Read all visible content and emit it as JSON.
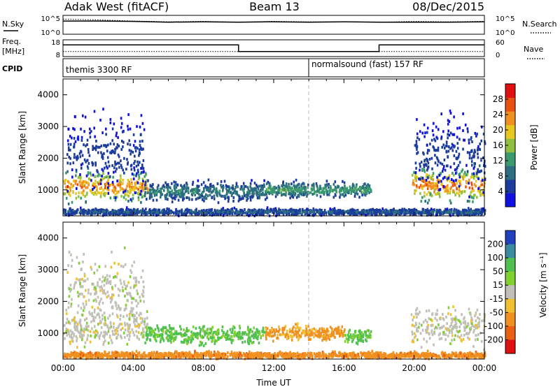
{
  "header": {
    "station": "Adak West (fitACF)",
    "beam": "Beam 13",
    "date": "08/Dec/2015"
  },
  "panel_labels": {
    "nsky": "N.Sky",
    "nsearch": "N.Search",
    "freq_line1": "Freq.",
    "freq_line2": "[MHz]",
    "nave": "Nave",
    "cpid": "CPID"
  },
  "cpid_names": [
    "themis 3300 RF",
    "normalsound (fast) 157 RF"
  ],
  "colors": {
    "power": [
      "#1010e0",
      "#1c3c9c",
      "#2c6e80",
      "#3a9a6e",
      "#90c040",
      "#e8c820",
      "#f09020",
      "#e85010",
      "#e01010"
    ],
    "velocity_pos": [
      "#2040c0",
      "#3a8aa0",
      "#50c050",
      "#80d030"
    ],
    "velocity_zero": "#c0c0b8",
    "velocity_neg": [
      "#f0c030",
      "#f09020",
      "#e86010",
      "#e01010"
    ]
  },
  "chart_data": [
    {
      "type": "line",
      "title": "N.Sky",
      "x_range_ut_hours": [
        0,
        24
      ],
      "y_tick_labels": [
        "10^5",
        "10^0"
      ],
      "right_label": "N.Search",
      "series": [
        {
          "name": "N.Sky",
          "x": [
            0,
            2,
            4,
            6,
            8,
            10,
            12,
            14,
            16,
            18,
            20,
            22,
            24
          ],
          "values": [
            3.5,
            3.5,
            3.4,
            3.2,
            3.3,
            3.2,
            3.3,
            3.2,
            3.3,
            3.2,
            3.2,
            3.2,
            3.3
          ]
        },
        {
          "name": "N.Search",
          "x": [
            0,
            2,
            4,
            6,
            8,
            10,
            12,
            14,
            16,
            18,
            20,
            22,
            24
          ],
          "values": [
            4.0,
            3.8,
            3.5,
            3.3,
            3.4,
            3.2,
            3.4,
            3.3,
            3.3,
            3.2,
            3.4,
            3.3,
            3.4
          ]
        }
      ]
    },
    {
      "type": "line",
      "title": "Freq.",
      "ylabel": "[MHz]",
      "x_range_ut_hours": [
        0,
        24
      ],
      "ylim": [
        8,
        18
      ],
      "y_tick_labels": [
        "18",
        "8"
      ],
      "right_ylim": [
        0,
        60
      ],
      "right_tick_labels": [
        "60",
        "0"
      ],
      "right_label": "Nave",
      "series": [
        {
          "name": "Freq.",
          "x": [
            0,
            10,
            10,
            18,
            18,
            24
          ],
          "values": [
            15,
            15,
            11,
            11,
            15,
            15
          ]
        },
        {
          "name": "Nave",
          "x": [
            0,
            24
          ],
          "values": [
            18,
            18
          ]
        }
      ]
    },
    {
      "type": "heatmap",
      "title": "CPID",
      "x_range_ut_hours": [
        0,
        24
      ],
      "segments": [
        {
          "name": "themis 3300 RF",
          "start": 0,
          "end": 14
        },
        {
          "name": "normalsound (fast) 157 RF",
          "start": 14,
          "end": 24
        }
      ]
    },
    {
      "type": "heatmap",
      "xlabel": "Time UT",
      "ylabel": "Slant Range [km]",
      "x_tick_labels": [
        "00:00",
        "04:00",
        "08:00",
        "12:00",
        "16:00",
        "20:00",
        "00:00"
      ],
      "x_ticks_hours": [
        0,
        4,
        8,
        12,
        16,
        20,
        24
      ],
      "ylim": [
        180,
        4500
      ],
      "y_ticks": [
        1000,
        2000,
        3000,
        4000
      ],
      "colorbar_label": "Power [dB]",
      "colorbar_ticks": [
        4,
        8,
        12,
        16,
        20,
        24,
        28
      ],
      "colorbar_range": [
        0,
        32
      ],
      "regions": [
        {
          "t0": 0.0,
          "t1": 4.8,
          "r_center": 1100,
          "r_width": 550,
          "peak_db": 30
        },
        {
          "t0": 0.2,
          "t1": 4.6,
          "r_center": 2100,
          "r_width": 1400,
          "peak_db": 6
        },
        {
          "t0": 4.6,
          "t1": 11.5,
          "r_center": 950,
          "r_width": 350,
          "peak_db": 13
        },
        {
          "t0": 11.5,
          "t1": 17.5,
          "r_center": 1000,
          "r_width": 280,
          "peak_db": 16
        },
        {
          "t0": 19.8,
          "t1": 24.0,
          "r_center": 1150,
          "r_width": 600,
          "peak_db": 30
        },
        {
          "t0": 20.0,
          "t1": 24.0,
          "r_center": 2100,
          "r_width": 1400,
          "peak_db": 6
        },
        {
          "t0": 0.0,
          "t1": 24.0,
          "r_center": 300,
          "r_width": 120,
          "peak_db": 10
        }
      ]
    },
    {
      "type": "heatmap",
      "xlabel": "Time UT",
      "ylabel": "Slant Range [km]",
      "x_tick_labels": [
        "00:00",
        "04:00",
        "08:00",
        "12:00",
        "16:00",
        "20:00",
        "00:00"
      ],
      "x_ticks_hours": [
        0,
        4,
        8,
        12,
        16,
        20,
        24
      ],
      "ylim": [
        180,
        4500
      ],
      "y_ticks": [
        1000,
        2000,
        3000,
        4000
      ],
      "colorbar_label": "Velocity [m s⁻¹]",
      "colorbar_ticks": [
        200,
        100,
        50,
        15,
        -15,
        -50,
        -100,
        -200
      ],
      "regions": [
        {
          "t0": 0.0,
          "t1": 4.8,
          "r_center": 1200,
          "r_width": 700,
          "velocity": 0
        },
        {
          "t0": 0.2,
          "t1": 4.6,
          "r_center": 2300,
          "r_width": 1300,
          "velocity": 0
        },
        {
          "t0": 4.6,
          "t1": 11.5,
          "r_center": 950,
          "r_width": 350,
          "velocity": 40
        },
        {
          "t0": 11.5,
          "t1": 16.0,
          "r_center": 1000,
          "r_width": 280,
          "velocity": -40
        },
        {
          "t0": 16.0,
          "t1": 17.5,
          "r_center": 900,
          "r_width": 250,
          "velocity": 40
        },
        {
          "t0": 19.8,
          "t1": 24.0,
          "r_center": 1200,
          "r_width": 700,
          "velocity": 0
        },
        {
          "t0": 0.0,
          "t1": 24.0,
          "r_center": 300,
          "r_width": 120,
          "velocity": -60
        }
      ]
    }
  ]
}
